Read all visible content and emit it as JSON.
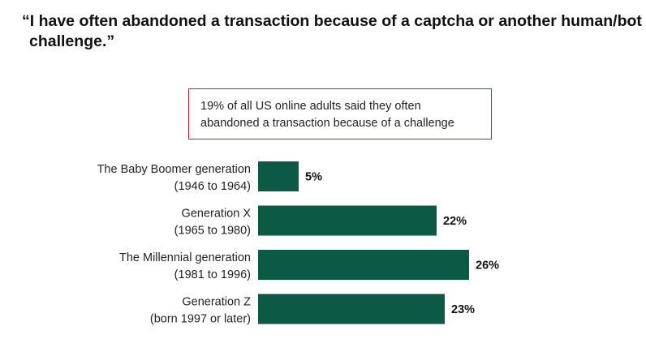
{
  "title": "“I have often abandoned a transaction because of a captcha or another human/bot challenge.”",
  "callout": "19% of all US online adults said they often abandoned a transaction because of a challenge",
  "colors": {
    "bar": "#0c5a45",
    "callout_border": "#c8202e"
  },
  "chart_data": {
    "type": "bar",
    "orientation": "horizontal",
    "categories": [
      [
        "The Baby Boomer generation",
        "(1946 to 1964)"
      ],
      [
        "Generation X",
        "(1965 to 1980)"
      ],
      [
        "The Millennial generation",
        "(1981 to 1996)"
      ],
      [
        "Generation Z",
        "(born 1997 or later)"
      ]
    ],
    "values": [
      5,
      22,
      26,
      23
    ],
    "value_labels": [
      "5%",
      "22%",
      "26%",
      "23%"
    ],
    "unit": "%",
    "grid": false,
    "legend": "none"
  }
}
